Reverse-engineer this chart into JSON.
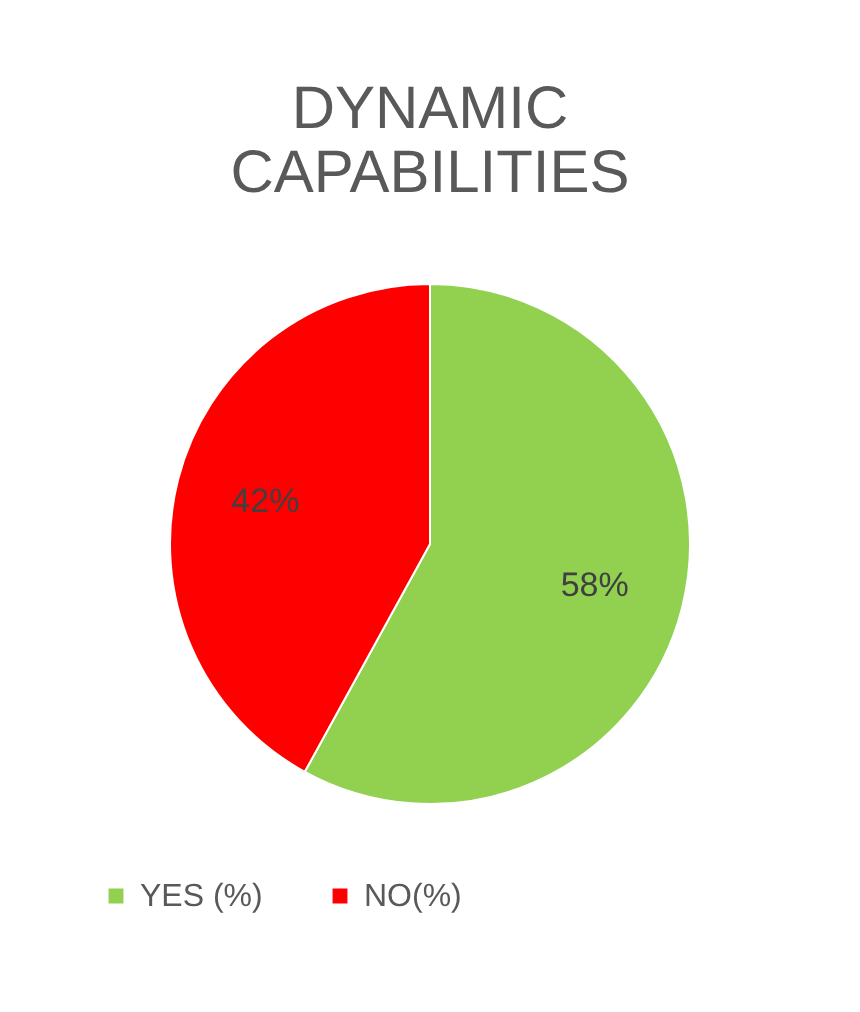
{
  "chart_data": {
    "type": "pie",
    "title": "DYNAMIC CAPABILITIES",
    "categories": [
      "YES (%)",
      "NO(%)"
    ],
    "values": [
      58,
      42
    ],
    "colors": [
      "#92d050",
      "#ff0000"
    ],
    "value_labels": [
      "58%",
      "42%"
    ],
    "legend": "bottom"
  }
}
